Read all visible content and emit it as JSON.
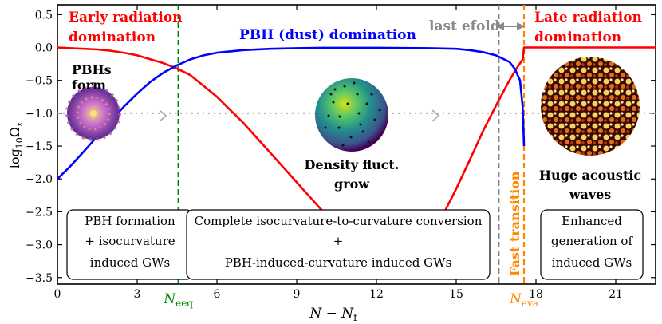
{
  "chart_data": {
    "type": "line",
    "xlabel": "N − N",
    "xlabel_sub": "f",
    "ylabel": "log",
    "ylabel_sub": "10",
    "ylabel_symbol": "Ω",
    "ylabel_symbol_sub": "x",
    "xlim": [
      0,
      22.5
    ],
    "ylim": [
      -3.6,
      0.65
    ],
    "xticks": [
      0,
      3,
      6,
      9,
      12,
      15,
      18,
      21
    ],
    "yticks": [
      0.5,
      0.0,
      -0.5,
      -1.0,
      -1.5,
      -2.0,
      -2.5,
      -3.0,
      -3.5
    ],
    "grid": false,
    "series": [
      {
        "color": "#ff0000",
        "description_from_legend": "radiation",
        "x": [
          0,
          0.5,
          1.0,
          1.5,
          2.0,
          2.5,
          3.0,
          3.5,
          4.0,
          4.5,
          5.0,
          6.0,
          7.0,
          8.0,
          9.0,
          10.0,
          11.0,
          12.0,
          12.5,
          13.0,
          13.5,
          14.0,
          14.5,
          15.0,
          15.5,
          16.0,
          16.5,
          17.0,
          17.3,
          17.5,
          17.55,
          22.5
        ],
        "y": [
          0.0,
          -0.01,
          -0.02,
          -0.03,
          -0.05,
          -0.08,
          -0.12,
          -0.18,
          -0.24,
          -0.32,
          -0.42,
          -0.75,
          -1.15,
          -1.6,
          -2.05,
          -2.5,
          -2.9,
          -3.25,
          -3.33,
          -3.3,
          -3.15,
          -2.9,
          -2.55,
          -2.15,
          -1.72,
          -1.28,
          -0.88,
          -0.5,
          -0.3,
          -0.18,
          0.0,
          0.0
        ]
      },
      {
        "color": "#0000ff",
        "description_from_legend": "PBH",
        "x": [
          0,
          0.5,
          1.0,
          1.5,
          2.0,
          2.5,
          3.0,
          3.5,
          4.0,
          4.5,
          5.0,
          5.5,
          6.0,
          7.0,
          8.0,
          9.0,
          10.0,
          12.0,
          14.0,
          15.0,
          15.5,
          16.0,
          16.5,
          17.0,
          17.2,
          17.4,
          17.5,
          17.55
        ],
        "y": [
          -2.0,
          -1.8,
          -1.58,
          -1.35,
          -1.12,
          -0.9,
          -0.7,
          -0.52,
          -0.38,
          -0.27,
          -0.18,
          -0.12,
          -0.08,
          -0.04,
          -0.02,
          -0.01,
          -0.005,
          -0.005,
          -0.01,
          -0.02,
          -0.04,
          -0.07,
          -0.12,
          -0.22,
          -0.32,
          -0.5,
          -0.9,
          -1.5
        ]
      }
    ],
    "reference_line": {
      "y": -1.0,
      "style": "dotted",
      "color": "#aaaaaa"
    },
    "vlines": [
      {
        "x": 4.55,
        "color": "#008800",
        "label": "N",
        "label_sub": "eeq"
      },
      {
        "x": 16.6,
        "color": "#888888",
        "label": ""
      },
      {
        "x": 17.55,
        "color": "#ff8800",
        "label": "N",
        "label_sub": "eva"
      }
    ],
    "annotations": {
      "early_radiation": [
        "Early radiation",
        "domination"
      ],
      "pbh_domination": "PBH (dust) domination",
      "last_efold": "last efold",
      "late_radiation": [
        "Late radiation",
        "domination"
      ],
      "pbhs_form": [
        "PBHs",
        "form"
      ],
      "density_fluct": [
        "Density fluct.",
        "grow"
      ],
      "huge_acoustic": [
        "Huge acoustic",
        "waves"
      ],
      "fast_transition": "Fast transition",
      "box1": [
        "PBH formation",
        "+ isocurvature",
        "induced GWs"
      ],
      "box2": [
        "Complete isocurvature-to-curvature conversion",
        "+",
        "PBH-induced-curvature induced GWs"
      ],
      "box3": [
        "Enhanced",
        "generation of",
        "induced GWs"
      ]
    },
    "colors": {
      "radiation": "#ff0000",
      "pbh": "#0000ff",
      "eeq": "#008800",
      "eva": "#ff8800",
      "lastefold": "#888888"
    }
  }
}
